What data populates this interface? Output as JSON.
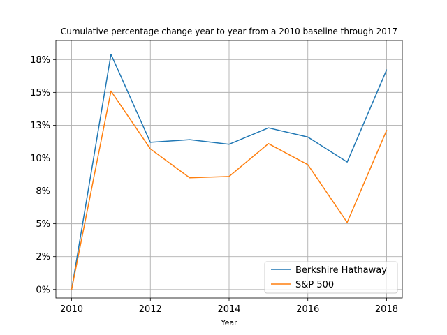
{
  "chart_data": {
    "type": "line",
    "title": "Cumulative percentage change year to year from a 2010 baseline through 2017",
    "xlabel": "Year",
    "ylabel": "",
    "x": [
      2010,
      2011,
      2012,
      2013,
      2014,
      2015,
      2016,
      2017,
      2018
    ],
    "xlim": [
      2009.6,
      2018.4
    ],
    "ylim": [
      -0.65,
      18.95
    ],
    "x_ticks": [
      2010,
      2012,
      2014,
      2016,
      2018
    ],
    "x_tick_labels": [
      "2010",
      "2012",
      "2014",
      "2016",
      "2018"
    ],
    "y_ticks": [
      0,
      2.5,
      5,
      7.5,
      10,
      12.5,
      15,
      17.5
    ],
    "y_tick_labels": [
      "0%",
      "2%",
      "5%",
      "8%",
      "10%",
      "13%",
      "15%",
      "18%"
    ],
    "grid": true,
    "legend_position": "lower-right",
    "series": [
      {
        "name": "Berkshire Hathaway",
        "color": "#1f77b4",
        "values": [
          0.0,
          17.9,
          11.2,
          11.4,
          11.05,
          12.3,
          11.6,
          9.7,
          16.7
        ]
      },
      {
        "name": "S&P 500",
        "color": "#ff7f0e",
        "values": [
          0.0,
          15.1,
          10.7,
          8.5,
          8.6,
          11.1,
          9.5,
          5.1,
          12.1
        ]
      }
    ]
  }
}
